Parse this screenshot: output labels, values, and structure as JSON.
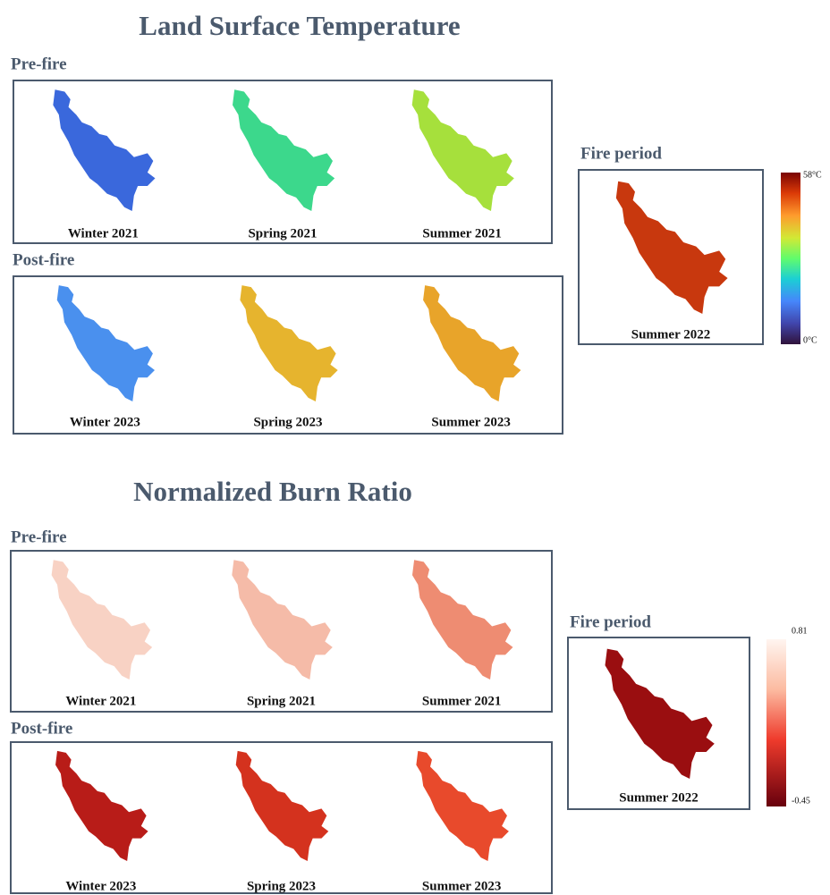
{
  "sections": [
    {
      "title": "Land Surface Temperature",
      "groups": [
        {
          "label": "Pre-fire",
          "panels": [
            "Winter 2021",
            "Spring 2021",
            "Summer 2021"
          ]
        },
        {
          "label": "Post-fire",
          "panels": [
            "Winter 2023",
            "Spring 2023",
            "Summer 2023"
          ]
        }
      ],
      "fire": {
        "label": "Fire period",
        "panel": "Summer 2022"
      },
      "colorbar": {
        "max": "58°C",
        "min": "0°C"
      }
    },
    {
      "title": "Normalized Burn Ratio",
      "groups": [
        {
          "label": "Pre-fire",
          "panels": [
            "Winter 2021",
            "Spring 2021",
            "Summer 2021"
          ]
        },
        {
          "label": "Post-fire",
          "panels": [
            "Winter 2023",
            "Spring 2023",
            "Summer 2023"
          ]
        }
      ],
      "fire": {
        "label": "Fire period",
        "panel": "Summer 2022"
      },
      "colorbar": {
        "max": "0.81",
        "min": "-0.45"
      }
    }
  ]
}
